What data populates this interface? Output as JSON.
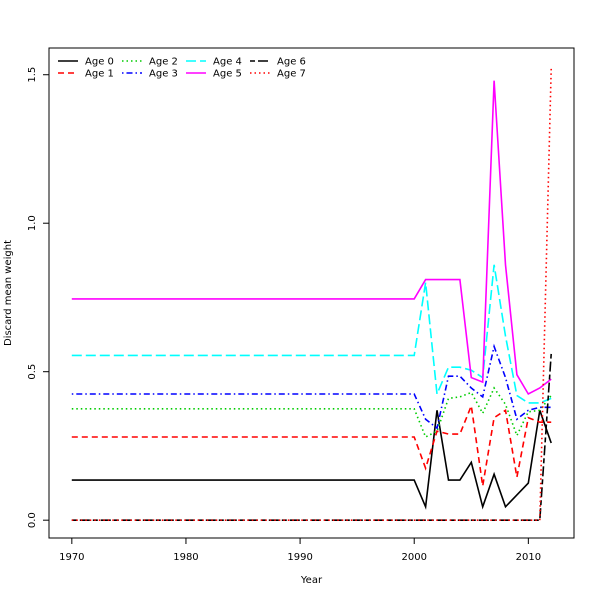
{
  "chart_data": {
    "type": "line",
    "title": "",
    "xlabel": "Year",
    "ylabel": "Discard mean weight",
    "xlim": [
      1968,
      2014
    ],
    "ylim": [
      -0.06,
      1.59
    ],
    "x_ticks": [
      1970,
      1980,
      1990,
      2000,
      2010
    ],
    "y_ticks": [
      0.0,
      0.5,
      1.0,
      1.5
    ],
    "y_tick_labels": [
      "0.0",
      "0.5",
      "1.0",
      "1.5"
    ],
    "grid": false,
    "legend_position": "top-left",
    "series": [
      {
        "name": "Age 0",
        "color": "#000000",
        "dash": "solid",
        "x": [
          1970,
          2000,
          2001,
          2002,
          2003,
          2004,
          2005,
          2006,
          2007,
          2008,
          2009,
          2010,
          2011,
          2012
        ],
        "y": [
          0.135,
          0.135,
          0.045,
          0.37,
          0.135,
          0.135,
          0.195,
          0.045,
          0.155,
          0.045,
          0.085,
          0.125,
          0.37,
          0.26
        ]
      },
      {
        "name": "Age 1",
        "color": "#ff0000",
        "dash": "dashed",
        "x": [
          1970,
          2000,
          2001,
          2002,
          2003,
          2004,
          2005,
          2006,
          2007,
          2008,
          2009,
          2010,
          2011,
          2012
        ],
        "y": [
          0.28,
          0.28,
          0.175,
          0.3,
          0.29,
          0.29,
          0.385,
          0.115,
          0.345,
          0.37,
          0.145,
          0.345,
          0.33,
          0.33
        ]
      },
      {
        "name": "Age 2",
        "color": "#00cc00",
        "dash": "dotted",
        "x": [
          1970,
          2000,
          2001,
          2002,
          2003,
          2004,
          2005,
          2006,
          2007,
          2008,
          2009,
          2010,
          2011,
          2012
        ],
        "y": [
          0.375,
          0.375,
          0.28,
          0.3,
          0.41,
          0.415,
          0.43,
          0.36,
          0.445,
          0.39,
          0.285,
          0.365,
          0.37,
          0.42
        ]
      },
      {
        "name": "Age 3",
        "color": "#0000ff",
        "dash": "dashdot",
        "x": [
          1970,
          2000,
          2001,
          2002,
          2003,
          2004,
          2005,
          2006,
          2007,
          2008,
          2009,
          2010,
          2011,
          2012
        ],
        "y": [
          0.425,
          0.425,
          0.34,
          0.31,
          0.485,
          0.485,
          0.445,
          0.415,
          0.585,
          0.48,
          0.34,
          0.37,
          0.38,
          0.38
        ]
      },
      {
        "name": "Age 4",
        "color": "#00ffff",
        "dash": "longdash",
        "x": [
          1970,
          2000,
          2001,
          2002,
          2003,
          2004,
          2005,
          2006,
          2007,
          2008,
          2009,
          2010,
          2011,
          2012
        ],
        "y": [
          0.555,
          0.555,
          0.8,
          0.425,
          0.515,
          0.515,
          0.505,
          0.48,
          0.86,
          0.62,
          0.42,
          0.395,
          0.395,
          0.41
        ]
      },
      {
        "name": "Age 5",
        "color": "#ff00ff",
        "dash": "solid",
        "x": [
          1970,
          2000,
          2001,
          2002,
          2003,
          2004,
          2005,
          2006,
          2007,
          2008,
          2009,
          2010,
          2011,
          2012
        ],
        "y": [
          0.745,
          0.745,
          0.81,
          0.81,
          0.81,
          0.81,
          0.48,
          0.465,
          1.48,
          0.86,
          0.49,
          0.425,
          0.445,
          0.475
        ]
      },
      {
        "name": "Age 6",
        "color": "#000000",
        "dash": "twodash",
        "x": [
          1970,
          2010,
          2011,
          2012
        ],
        "y": [
          0.0,
          0.0,
          0.0,
          0.56
        ]
      },
      {
        "name": "Age 7",
        "color": "#ff0000",
        "dash": "dotted",
        "x": [
          1970,
          2010,
          2011,
          2012
        ],
        "y": [
          0.0,
          0.0,
          0.0,
          1.52
        ]
      }
    ]
  }
}
